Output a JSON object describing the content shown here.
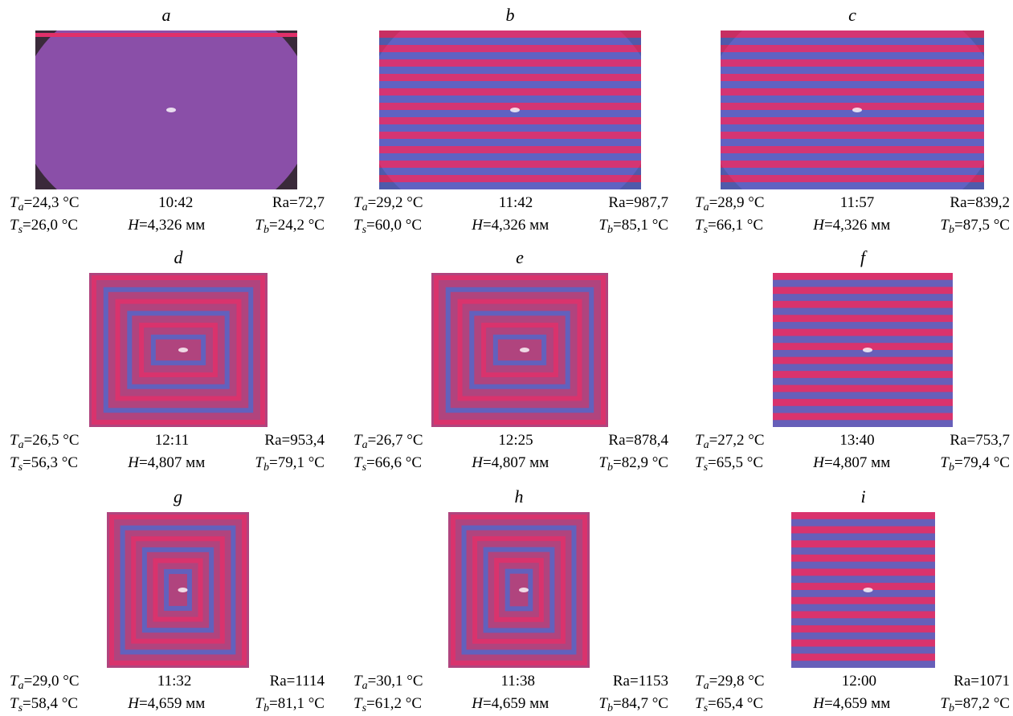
{
  "panels": [
    {
      "label": "a",
      "caption": [
        [
          {
            "symbol": "T",
            "sub": "a",
            "value": "=24,3 °C"
          },
          {
            "value": "10:42"
          },
          {
            "symbol": "Ra",
            "value": "=72,7"
          }
        ],
        [
          {
            "symbol": "T",
            "sub": "s",
            "value": "=26,0 °C"
          },
          {
            "symbol": "H",
            "value": "=4,326 мм"
          },
          {
            "symbol": "T",
            "sub": "b",
            "value": "=24,2 °C"
          }
        ]
      ]
    },
    {
      "label": "b",
      "caption": [
        [
          {
            "symbol": "T",
            "sub": "a",
            "value": "=29,2 °C"
          },
          {
            "value": "11:42"
          },
          {
            "symbol": "Ra",
            "value": "=987,7"
          }
        ],
        [
          {
            "symbol": "T",
            "sub": "s",
            "value": "=60,0 °C"
          },
          {
            "symbol": "H",
            "value": "=4,326 мм"
          },
          {
            "symbol": "T",
            "sub": "b",
            "value": "=85,1 °C"
          }
        ]
      ]
    },
    {
      "label": "c",
      "caption": [
        [
          {
            "symbol": "T",
            "sub": "a",
            "value": "=28,9 °C"
          },
          {
            "value": "11:57"
          },
          {
            "symbol": "Ra",
            "value": "=839,2"
          }
        ],
        [
          {
            "symbol": "T",
            "sub": "s",
            "value": "=66,1 °C"
          },
          {
            "symbol": "H",
            "value": "=4,326 мм"
          },
          {
            "symbol": "T",
            "sub": "b",
            "value": "=87,5 °C"
          }
        ]
      ]
    },
    {
      "label": "d",
      "caption": [
        [
          {
            "symbol": "T",
            "sub": "a",
            "value": "=26,5 °C"
          },
          {
            "value": "12:11"
          },
          {
            "symbol": "Ra",
            "value": "=953,4"
          }
        ],
        [
          {
            "symbol": "T",
            "sub": "s",
            "value": "=56,3 °C"
          },
          {
            "symbol": "H",
            "value": "=4,807 мм"
          },
          {
            "symbol": "T",
            "sub": "b",
            "value": "=79,1 °C"
          }
        ]
      ]
    },
    {
      "label": "e",
      "caption": [
        [
          {
            "symbol": "T",
            "sub": "a",
            "value": "=26,7 °C"
          },
          {
            "value": "12:25"
          },
          {
            "symbol": "Ra",
            "value": "=878,4"
          }
        ],
        [
          {
            "symbol": "T",
            "sub": "s",
            "value": "=66,6 °C"
          },
          {
            "symbol": "H",
            "value": "=4,807 мм"
          },
          {
            "symbol": "T",
            "sub": "b",
            "value": "=82,9 °C"
          }
        ]
      ]
    },
    {
      "label": "f",
      "caption": [
        [
          {
            "symbol": "T",
            "sub": "a",
            "value": "=27,2 °C"
          },
          {
            "value": "13:40"
          },
          {
            "symbol": "Ra",
            "value": "=753,7"
          }
        ],
        [
          {
            "symbol": "T",
            "sub": "s",
            "value": "=65,5 °C"
          },
          {
            "symbol": "H",
            "value": "=4,807 мм"
          },
          {
            "symbol": "T",
            "sub": "b",
            "value": "=79,4 °C"
          }
        ]
      ]
    },
    {
      "label": "g",
      "caption": [
        [
          {
            "symbol": "T",
            "sub": "a",
            "value": "=29,0 °C"
          },
          {
            "value": "11:32"
          },
          {
            "symbol": "Ra",
            "value": "=1114"
          }
        ],
        [
          {
            "symbol": "T",
            "sub": "s",
            "value": "=58,4 °C"
          },
          {
            "symbol": "H",
            "value": "=4,659 мм"
          },
          {
            "symbol": "T",
            "sub": "b",
            "value": "=81,1 °C"
          }
        ]
      ]
    },
    {
      "label": "h",
      "caption": [
        [
          {
            "symbol": "T",
            "sub": "a",
            "value": "=30,1 °C"
          },
          {
            "value": "11:38"
          },
          {
            "symbol": "Ra",
            "value": "=1153"
          }
        ],
        [
          {
            "symbol": "T",
            "sub": "s",
            "value": "=61,2 °C"
          },
          {
            "symbol": "H",
            "value": "=4,659 мм"
          },
          {
            "symbol": "T",
            "sub": "b",
            "value": "=84,7 °C"
          }
        ]
      ]
    },
    {
      "label": "i",
      "caption": [
        [
          {
            "symbol": "T",
            "sub": "a",
            "value": "=29,8 °C"
          },
          {
            "value": "12:00"
          },
          {
            "symbol": "Ra",
            "value": "=1071"
          }
        ],
        [
          {
            "symbol": "T",
            "sub": "s",
            "value": "=65,4 °C"
          },
          {
            "symbol": "H",
            "value": "=4,659 мм"
          },
          {
            "symbol": "T",
            "sub": "b",
            "value": "=87,2 °C"
          }
        ]
      ]
    }
  ]
}
